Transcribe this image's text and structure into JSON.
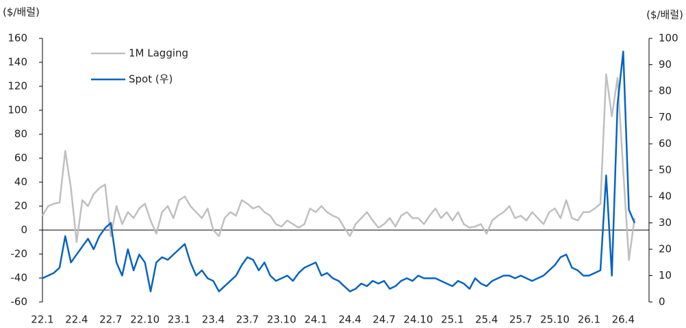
{
  "chart_data": {
    "type": "line",
    "y_label": "($/배럴)",
    "y2_label": "($/배럴)",
    "categories": [
      "22.1",
      null,
      null,
      null,
      null,
      null,
      "22.4",
      null,
      null,
      null,
      null,
      null,
      "22.7",
      null,
      null,
      null,
      null,
      null,
      "22.10",
      null,
      null,
      null,
      null,
      null,
      "23.1",
      null,
      null,
      null,
      null,
      null,
      "23.4",
      null,
      null,
      null,
      null,
      null,
      "23.7",
      null,
      null,
      null,
      null,
      null,
      "23.10",
      null,
      null,
      null,
      null,
      null,
      "24.1",
      null,
      null,
      null,
      null,
      null,
      "24.4",
      null,
      null,
      null,
      null,
      null,
      "24.7",
      null,
      null,
      null,
      null,
      null,
      "24.10",
      null,
      null,
      null,
      null,
      null,
      "25.1",
      null,
      null,
      null,
      null,
      null,
      "25.4",
      null,
      null,
      null,
      null,
      null,
      "25.7",
      null,
      null,
      null,
      null,
      null,
      "25.10",
      null,
      null,
      null,
      null,
      null,
      "26.1",
      null,
      null,
      null,
      null,
      null,
      "26.4",
      null,
      null
    ],
    "series": [
      {
        "name": "1M Lagging",
        "color": "#bfbfbf",
        "axis": "y",
        "values": [
          12,
          20,
          22,
          23,
          66,
          35,
          -10,
          25,
          20,
          30,
          35,
          38,
          -5,
          20,
          5,
          15,
          10,
          18,
          22,
          8,
          -3,
          15,
          20,
          10,
          25,
          28,
          20,
          15,
          10,
          18,
          0,
          -5,
          10,
          15,
          12,
          25,
          22,
          18,
          20,
          15,
          12,
          5,
          3,
          8,
          5,
          2,
          5,
          18,
          15,
          20,
          15,
          12,
          10,
          2,
          -5,
          5,
          10,
          15,
          8,
          2,
          5,
          10,
          3,
          12,
          15,
          10,
          10,
          5,
          12,
          18,
          10,
          15,
          8,
          15,
          5,
          2,
          3,
          5,
          -3,
          8,
          12,
          15,
          20,
          10,
          12,
          8,
          15,
          10,
          5,
          15,
          18,
          10,
          25,
          10,
          8,
          15,
          15,
          18,
          22,
          130,
          95,
          127,
          50,
          -25,
          10
        ]
      },
      {
        "name": "Spot (우)",
        "color": "#0563c1",
        "axis": "y2",
        "values": [
          9,
          10,
          11,
          13,
          25,
          15,
          18,
          21,
          24,
          20,
          25,
          28,
          30,
          15,
          10,
          20,
          12,
          18,
          15,
          4,
          15,
          17,
          16,
          18,
          20,
          22,
          15,
          10,
          12,
          9,
          8,
          4,
          6,
          8,
          10,
          14,
          17,
          16,
          12,
          15,
          10,
          8,
          9,
          10,
          8,
          11,
          13,
          14,
          15,
          10,
          11,
          9,
          8,
          6,
          4,
          5,
          7,
          6,
          8,
          7,
          8,
          5,
          6,
          8,
          9,
          8,
          10,
          9,
          9,
          9,
          8,
          7,
          6,
          8,
          7,
          5,
          9,
          7,
          6,
          8,
          9,
          10,
          10,
          9,
          10,
          9,
          8,
          9,
          10,
          12,
          14,
          17,
          18,
          13,
          12,
          10,
          10,
          11,
          12,
          48,
          10,
          75,
          95,
          35,
          30
        ]
      }
    ],
    "ylim": [
      -60,
      160
    ],
    "yticks": [
      -60,
      -40,
      -20,
      0,
      20,
      40,
      60,
      80,
      100,
      120,
      140,
      160
    ],
    "y2lim": [
      0,
      100
    ],
    "y2ticks": [
      0,
      10,
      20,
      30,
      40,
      50,
      60,
      70,
      80,
      90,
      100
    ],
    "legend": "top-left"
  }
}
